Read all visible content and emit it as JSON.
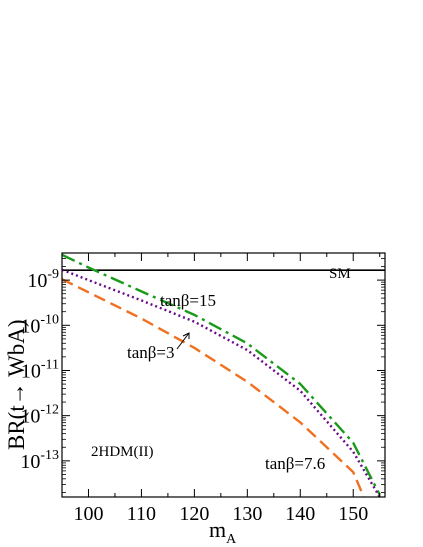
{
  "chart_data": {
    "type": "line",
    "xlabel": "m",
    "xlabel_sub": "A",
    "ylabel": "BR(t→ WbA)",
    "xlim": [
      95,
      156
    ],
    "ylim_log10": [
      -13.8,
      -8.4
    ],
    "yscale": "log",
    "grid": false,
    "x_ticks": [
      {
        "value": 100,
        "label": "100"
      },
      {
        "value": 110,
        "label": "110"
      },
      {
        "value": 120,
        "label": "120"
      },
      {
        "value": 130,
        "label": "130"
      },
      {
        "value": 140,
        "label": "140"
      },
      {
        "value": 150,
        "label": "150"
      }
    ],
    "y_ticks": [
      {
        "exp": -9,
        "base": "10",
        "power": "-9"
      },
      {
        "exp": -10,
        "base": "10",
        "power": "-10"
      },
      {
        "exp": -11,
        "base": "10",
        "power": "-11"
      },
      {
        "exp": -12,
        "base": "10",
        "power": "-12"
      },
      {
        "exp": -13,
        "base": "10",
        "power": "-13"
      }
    ],
    "series": [
      {
        "label": "SM",
        "color": "#000000",
        "style": "solid",
        "x": [
          95,
          156
        ],
        "log10_y": [
          -8.78,
          -8.78
        ]
      },
      {
        "label": "tanβ=15",
        "color": "#1a9a1a",
        "style": "dashdot",
        "x": [
          95,
          100,
          110,
          120,
          130,
          140,
          150,
          155
        ],
        "log10_y": [
          -8.44,
          -8.72,
          -9.25,
          -9.77,
          -10.4,
          -11.3,
          -12.6,
          -13.75
        ]
      },
      {
        "label": "tanβ=3",
        "color": "#6a0a8a",
        "style": "dotted",
        "x": [
          95,
          100,
          110,
          120,
          130,
          140,
          150,
          155
        ],
        "log10_y": [
          -8.77,
          -9.0,
          -9.45,
          -9.92,
          -10.55,
          -11.45,
          -12.8,
          -13.8
        ]
      },
      {
        "label": "tanβ=7.6",
        "color": "#f07020",
        "style": "dashed",
        "x": [
          95,
          100,
          110,
          120,
          130,
          140,
          150,
          152
        ],
        "log10_y": [
          -8.98,
          -9.27,
          -9.85,
          -10.5,
          -11.25,
          -12.15,
          -13.25,
          -13.8
        ]
      }
    ],
    "annotations": [
      {
        "text": "SM"
      },
      {
        "text": "tanβ=15"
      },
      {
        "text": "tanβ=3"
      },
      {
        "text": "tanβ=7.6"
      },
      {
        "text": "2HDM(II)"
      }
    ]
  }
}
